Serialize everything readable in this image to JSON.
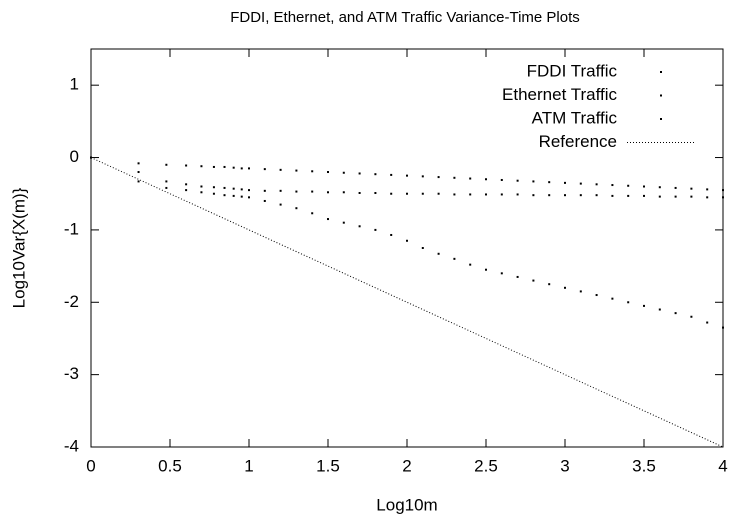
{
  "chart_data": {
    "type": "scatter",
    "title": "FDDI, Ethernet, and ATM Traffic Variance-Time Plots",
    "x_label": "Log10m",
    "y_label": "Log10Var{X(m)}",
    "x": [
      0,
      0.301,
      0.477,
      0.602,
      0.699,
      0.778,
      0.845,
      0.903,
      0.954,
      1,
      1.1,
      1.2,
      1.3,
      1.4,
      1.5,
      1.6,
      1.7,
      1.8,
      1.9,
      2,
      2.1,
      2.2,
      2.3,
      2.4,
      2.5,
      2.6,
      2.7,
      2.8,
      2.9,
      3,
      3.1,
      3.2,
      3.3,
      3.4,
      3.5,
      3.6,
      3.7,
      3.8,
      3.9,
      4
    ],
    "series": [
      {
        "name": "FDDI Traffic",
        "color": "#000000",
        "style": "points",
        "values": [
          0,
          -0.08,
          -0.1,
          -0.11,
          -0.12,
          -0.13,
          -0.13,
          -0.14,
          -0.15,
          -0.15,
          -0.16,
          -0.17,
          -0.18,
          -0.19,
          -0.2,
          -0.21,
          -0.22,
          -0.23,
          -0.24,
          -0.25,
          -0.26,
          -0.27,
          -0.28,
          -0.29,
          -0.3,
          -0.31,
          -0.32,
          -0.33,
          -0.34,
          -0.35,
          -0.36,
          -0.37,
          -0.38,
          -0.39,
          -0.4,
          -0.41,
          -0.42,
          -0.43,
          -0.44,
          -0.45
        ]
      },
      {
        "name": "Ethernet Traffic",
        "color": "#000000",
        "style": "points",
        "values": [
          0,
          -0.2,
          -0.33,
          -0.37,
          -0.4,
          -0.41,
          -0.42,
          -0.43,
          -0.44,
          -0.45,
          -0.46,
          -0.46,
          -0.47,
          -0.47,
          -0.48,
          -0.48,
          -0.49,
          -0.49,
          -0.5,
          -0.5,
          -0.5,
          -0.5,
          -0.51,
          -0.51,
          -0.51,
          -0.51,
          -0.51,
          -0.52,
          -0.52,
          -0.52,
          -0.52,
          -0.52,
          -0.53,
          -0.53,
          -0.53,
          -0.54,
          -0.54,
          -0.54,
          -0.55,
          -0.55
        ]
      },
      {
        "name": "ATM Traffic",
        "color": "#000000",
        "style": "points",
        "values": [
          0,
          -0.33,
          -0.42,
          -0.45,
          -0.48,
          -0.5,
          -0.52,
          -0.53,
          -0.54,
          -0.55,
          -0.6,
          -0.65,
          -0.7,
          -0.77,
          -0.85,
          -0.9,
          -0.95,
          -1.0,
          -1.07,
          -1.15,
          -1.25,
          -1.33,
          -1.4,
          -1.48,
          -1.55,
          -1.6,
          -1.65,
          -1.7,
          -1.75,
          -1.8,
          -1.85,
          -1.9,
          -1.95,
          -2.0,
          -2.05,
          -2.1,
          -2.15,
          -2.2,
          -2.28,
          -2.35
        ]
      },
      {
        "name": "Reference",
        "color": "#000000",
        "style": "dotted-line",
        "values": [
          0,
          -0.301,
          -0.477,
          -0.602,
          -0.699,
          -0.778,
          -0.845,
          -0.903,
          -0.954,
          -1,
          -1.1,
          -1.2,
          -1.3,
          -1.4,
          -1.5,
          -1.6,
          -1.7,
          -1.8,
          -1.9,
          -2,
          -2.1,
          -2.2,
          -2.3,
          -2.4,
          -2.5,
          -2.6,
          -2.7,
          -2.8,
          -2.9,
          -3,
          -3.1,
          -3.2,
          -3.3,
          -3.4,
          -3.5,
          -3.6,
          -3.7,
          -3.8,
          -3.9,
          -4
        ]
      }
    ],
    "xlim": [
      0,
      4
    ],
    "ylim": [
      -4,
      1.5
    ],
    "xticks": [
      0,
      0.5,
      1,
      1.5,
      2,
      2.5,
      3,
      3.5,
      4
    ],
    "yticks": [
      -4,
      -3,
      -2,
      -1,
      0,
      1
    ],
    "grid": false,
    "legend_position": "upper-right"
  }
}
